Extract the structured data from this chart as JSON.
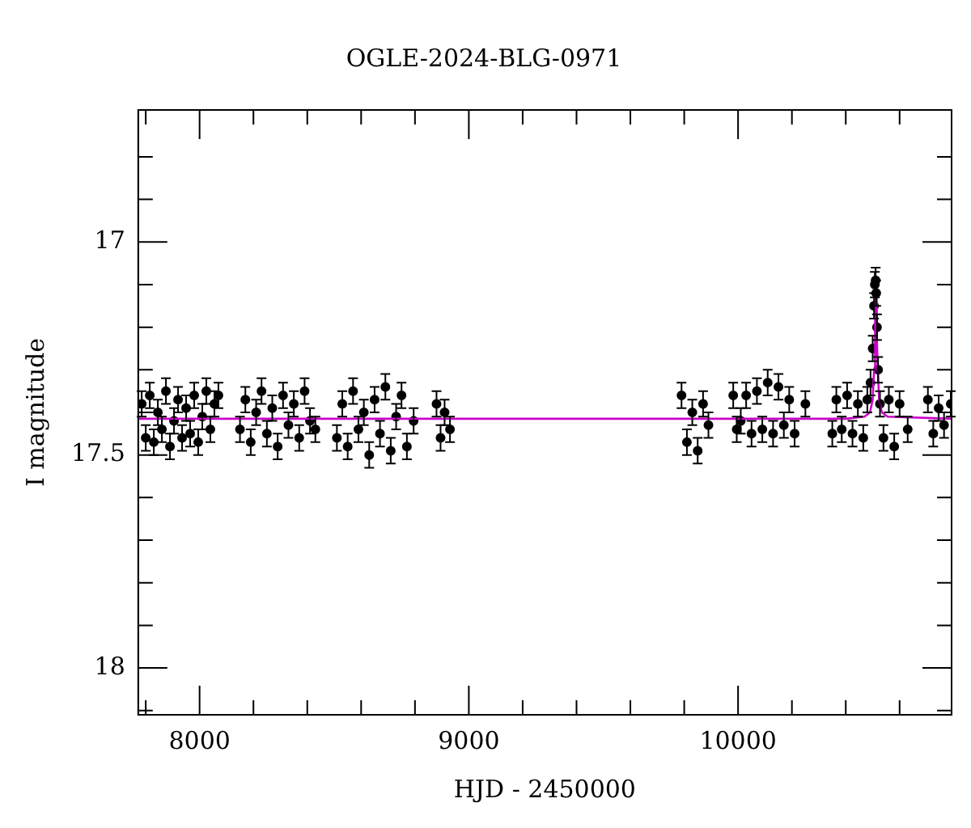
{
  "chart_data": {
    "type": "scatter",
    "title": "OGLE-2024-BLG-0971",
    "xlabel": "HJD - 2450000",
    "ylabel": "I magnitude",
    "xlim": [
      7772,
      10793
    ],
    "ylim": [
      18.11,
      16.69
    ],
    "xticks": [
      {
        "value": 7800,
        "label": null
      },
      8000,
      {
        "value": 8200,
        "label": null
      },
      {
        "value": 8400,
        "label": null
      },
      {
        "value": 8600,
        "label": null
      },
      {
        "value": 8800,
        "label": null
      },
      9000,
      {
        "value": 9200,
        "label": null
      },
      {
        "value": 9400,
        "label": null
      },
      {
        "value": 9600,
        "label": null
      },
      {
        "value": 9800,
        "label": null
      },
      10000,
      {
        "value": 10200,
        "label": null
      },
      {
        "value": 10400,
        "label": null
      },
      {
        "value": 10600,
        "label": null
      }
    ],
    "yticks": [
      {
        "value": 16.8,
        "label": null
      },
      {
        "value": 16.9,
        "label": null
      },
      17,
      {
        "value": 17.1,
        "label": null
      },
      {
        "value": 17.2,
        "label": null
      },
      {
        "value": 17.3,
        "label": null
      },
      {
        "value": 17.4,
        "label": null
      },
      17.5,
      {
        "value": 17.6,
        "label": null
      },
      {
        "value": 17.7,
        "label": null
      },
      {
        "value": 17.8,
        "label": null
      },
      {
        "value": 17.9,
        "label": null
      },
      18,
      {
        "value": 18.1,
        "label": null
      }
    ],
    "grid": false,
    "legend": false,
    "marker": "circle",
    "series": [
      {
        "color": "#000000",
        "x": [
          7785,
          7800,
          7815,
          7830,
          7845,
          7860,
          7875,
          7890,
          7905,
          7920,
          7935,
          7950,
          7965,
          7980,
          7995,
          8010,
          8025,
          8040,
          8055,
          8070,
          8150,
          8170,
          8190,
          8210,
          8230,
          8250,
          8270,
          8290,
          8310,
          8330,
          8350,
          8370,
          8390,
          8410,
          8430,
          8510,
          8530,
          8550,
          8570,
          8590,
          8610,
          8630,
          8650,
          8670,
          8690,
          8710,
          8730,
          8750,
          8770,
          8795,
          8880,
          8895,
          8910,
          8930,
          9790,
          9810,
          9830,
          9850,
          9870,
          9890,
          9982,
          9995,
          10010,
          10030,
          10050,
          10070,
          10090,
          10110,
          10130,
          10150,
          10170,
          10190,
          10210,
          10250,
          10350,
          10365,
          10385,
          10405,
          10425,
          10445,
          10465,
          10480,
          10492,
          10500,
          10505,
          10508,
          10511,
          10513,
          10516,
          10520,
          10527,
          10540,
          10560,
          10580,
          10600,
          10630,
          10705,
          10725,
          10745,
          10765,
          10790
        ],
        "values": [
          17.38,
          17.46,
          17.36,
          17.47,
          17.4,
          17.44,
          17.35,
          17.48,
          17.42,
          17.37,
          17.46,
          17.39,
          17.45,
          17.36,
          17.47,
          17.41,
          17.35,
          17.44,
          17.38,
          17.36,
          17.44,
          17.37,
          17.47,
          17.4,
          17.35,
          17.45,
          17.39,
          17.48,
          17.36,
          17.43,
          17.38,
          17.46,
          17.35,
          17.42,
          17.44,
          17.46,
          17.38,
          17.48,
          17.35,
          17.44,
          17.4,
          17.5,
          17.37,
          17.45,
          17.34,
          17.49,
          17.41,
          17.36,
          17.48,
          17.42,
          17.38,
          17.46,
          17.4,
          17.44,
          17.36,
          17.47,
          17.4,
          17.49,
          17.38,
          17.43,
          17.36,
          17.44,
          17.42,
          17.36,
          17.45,
          17.35,
          17.44,
          17.33,
          17.45,
          17.34,
          17.43,
          17.37,
          17.45,
          17.38,
          17.45,
          17.37,
          17.44,
          17.36,
          17.45,
          17.38,
          17.46,
          17.37,
          17.33,
          17.25,
          17.15,
          17.1,
          17.09,
          17.12,
          17.2,
          17.3,
          17.38,
          17.46,
          17.37,
          17.48,
          17.38,
          17.44,
          17.37,
          17.45,
          17.39,
          17.43,
          17.38
        ],
        "errors": [
          0.03,
          0.03,
          0.03,
          0.03,
          0.03,
          0.03,
          0.03,
          0.03,
          0.03,
          0.03,
          0.03,
          0.03,
          0.03,
          0.03,
          0.03,
          0.03,
          0.03,
          0.03,
          0.03,
          0.03,
          0.03,
          0.03,
          0.03,
          0.03,
          0.03,
          0.03,
          0.03,
          0.03,
          0.03,
          0.03,
          0.03,
          0.03,
          0.03,
          0.03,
          0.03,
          0.03,
          0.03,
          0.03,
          0.03,
          0.03,
          0.03,
          0.03,
          0.03,
          0.03,
          0.03,
          0.03,
          0.03,
          0.03,
          0.03,
          0.03,
          0.03,
          0.03,
          0.03,
          0.03,
          0.03,
          0.03,
          0.03,
          0.03,
          0.03,
          0.03,
          0.03,
          0.03,
          0.03,
          0.03,
          0.03,
          0.03,
          0.03,
          0.03,
          0.03,
          0.03,
          0.03,
          0.03,
          0.03,
          0.03,
          0.03,
          0.03,
          0.03,
          0.03,
          0.03,
          0.03,
          0.03,
          0.03,
          0.03,
          0.03,
          0.03,
          0.03,
          0.03,
          0.03,
          0.03,
          0.03,
          0.03,
          0.03,
          0.03,
          0.03,
          0.03,
          0.03,
          0.03,
          0.03,
          0.03,
          0.03,
          0.03
        ]
      },
      {
        "type": "line",
        "color": "#cc00cc",
        "marker": "none",
        "x": [
          7772,
          10400,
          10470,
          10490,
          10500,
          10505,
          10508,
          10510,
          10512,
          10514,
          10516,
          10519,
          10524,
          10534,
          10555,
          10793
        ],
        "values": [
          17.415,
          17.415,
          17.41,
          17.4,
          17.37,
          17.3,
          17.22,
          17.16,
          17.13,
          17.16,
          17.22,
          17.3,
          17.37,
          17.4,
          17.41,
          17.415
        ]
      }
    ]
  }
}
